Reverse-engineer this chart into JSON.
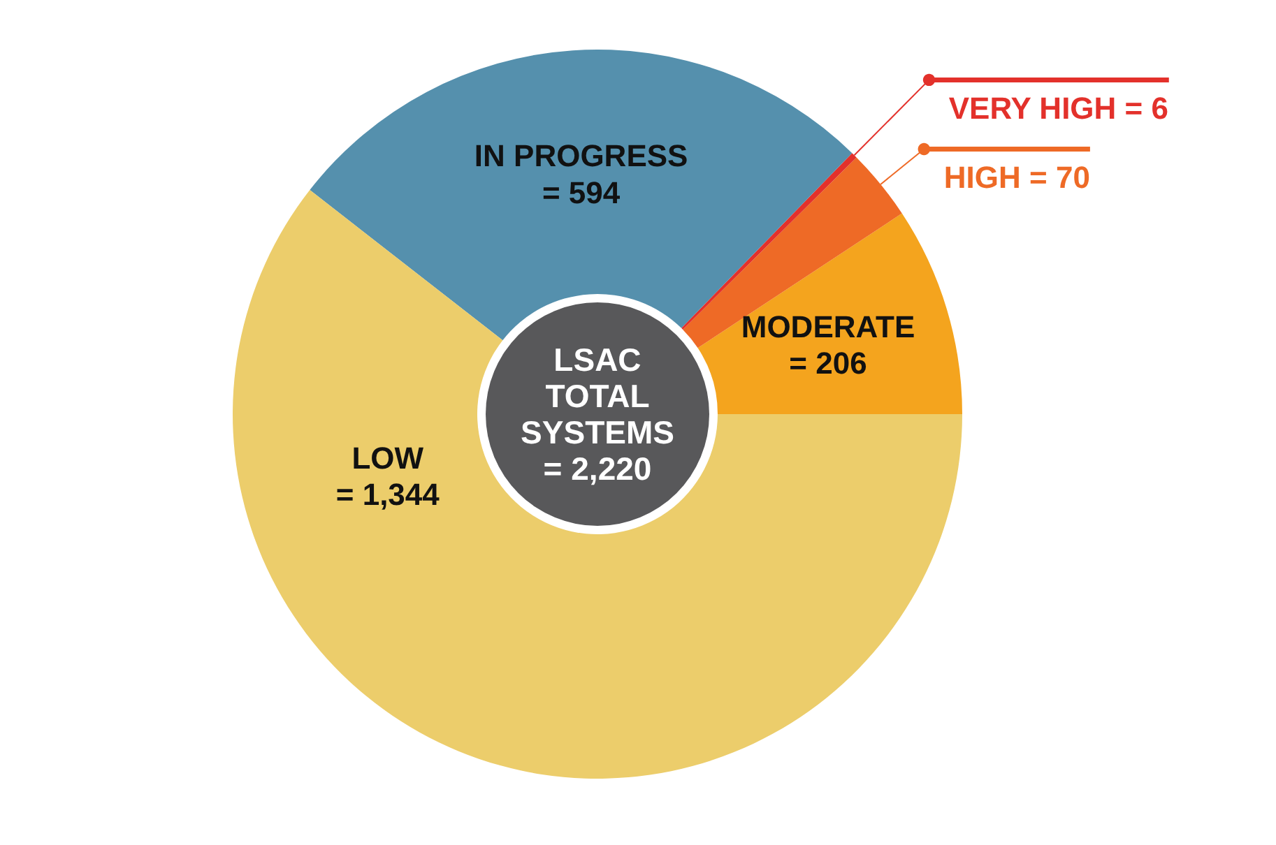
{
  "chart_data": {
    "type": "donut",
    "categories": [
      "MODERATE",
      "HIGH",
      "VERY HIGH",
      "IN PROGRESS",
      "LOW"
    ],
    "values": [
      206,
      70,
      6,
      594,
      1344
    ],
    "colors": [
      "#f4a41e",
      "#ee6a26",
      "#e3312b",
      "#5590ad",
      "#eccd6b"
    ],
    "value_labels": [
      "= 206",
      "= 70",
      "= 6",
      "= 594",
      "= 1,344"
    ],
    "annotations": [
      "LSAC\nTOTAL\nSYSTEMS\n= 2,220"
    ]
  }
}
